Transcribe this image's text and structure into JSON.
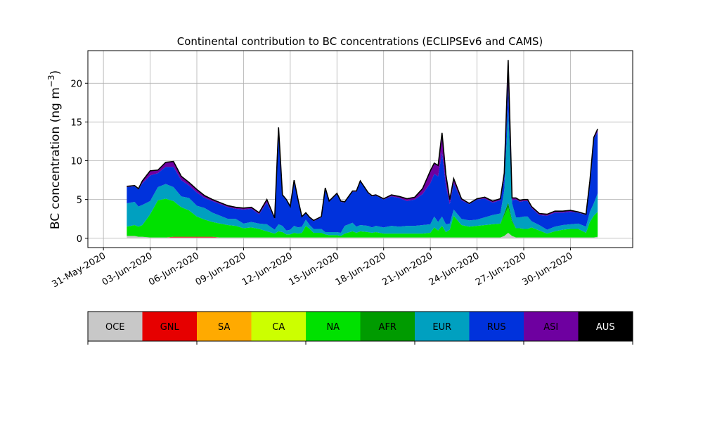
{
  "chart_data": {
    "type": "area",
    "stacked": true,
    "title": "Continental contribution to BC concentrations (ECLIPSEv6 and CAMS)",
    "ylabel": "BC concentration (ng m",
    "ylabel_sup": "−3",
    "ylabel_close": ")",
    "xlabel": "",
    "xlim": [
      "2020-05-30",
      "2020-07-04"
    ],
    "ylim": [
      -1.2,
      24.2
    ],
    "yticks": [
      0,
      5,
      10,
      15,
      20
    ],
    "xticks": [
      "31-May-2020",
      "03-Jun-2020",
      "06-Jun-2020",
      "09-Jun-2020",
      "12-Jun-2020",
      "15-Jun-2020",
      "18-Jun-2020",
      "21-Jun-2020",
      "24-Jun-2020",
      "27-Jun-2020",
      "30-Jun-2020"
    ],
    "xtick_dates": [
      "2020-05-31",
      "2020-06-03",
      "2020-06-06",
      "2020-06-09",
      "2020-06-12",
      "2020-06-15",
      "2020-06-18",
      "2020-06-21",
      "2020-06-24",
      "2020-06-27",
      "2020-06-30"
    ],
    "grid": true,
    "total_line_color": "#000000",
    "times": [
      "2020-06-01 12:00",
      "2020-06-02 00:00",
      "2020-06-02 06:00",
      "2020-06-02 12:00",
      "2020-06-03 00:00",
      "2020-06-03 12:00",
      "2020-06-04 00:00",
      "2020-06-04 12:00",
      "2020-06-05 00:00",
      "2020-06-05 12:00",
      "2020-06-06 00:00",
      "2020-06-06 12:00",
      "2020-06-07 00:00",
      "2020-06-07 12:00",
      "2020-06-08 00:00",
      "2020-06-08 12:00",
      "2020-06-09 00:00",
      "2020-06-09 12:00",
      "2020-06-10 00:00",
      "2020-06-10 12:00",
      "2020-06-11 00:00",
      "2020-06-11 06:00",
      "2020-06-11 12:00",
      "2020-06-11 18:00",
      "2020-06-12 00:00",
      "2020-06-12 06:00",
      "2020-06-12 12:00",
      "2020-06-12 18:00",
      "2020-06-13 00:00",
      "2020-06-13 06:00",
      "2020-06-13 12:00",
      "2020-06-14 00:00",
      "2020-06-14 06:00",
      "2020-06-14 12:00",
      "2020-06-15 00:00",
      "2020-06-15 06:00",
      "2020-06-15 12:00",
      "2020-06-16 00:00",
      "2020-06-16 06:00",
      "2020-06-16 12:00",
      "2020-06-17 00:00",
      "2020-06-17 06:00",
      "2020-06-17 12:00",
      "2020-06-18 00:00",
      "2020-06-18 12:00",
      "2020-06-19 00:00",
      "2020-06-19 12:00",
      "2020-06-20 00:00",
      "2020-06-20 12:00",
      "2020-06-21 00:00",
      "2020-06-21 06:00",
      "2020-06-21 12:00",
      "2020-06-21 18:00",
      "2020-06-22 00:00",
      "2020-06-22 06:00",
      "2020-06-22 12:00",
      "2020-06-23 00:00",
      "2020-06-23 12:00",
      "2020-06-24 00:00",
      "2020-06-24 12:00",
      "2020-06-25 00:00",
      "2020-06-25 12:00",
      "2020-06-25 18:00",
      "2020-06-26 00:00",
      "2020-06-26 06:00",
      "2020-06-26 12:00",
      "2020-06-26 18:00",
      "2020-06-27 00:00",
      "2020-06-27 06:00",
      "2020-06-27 12:00",
      "2020-06-28 00:00",
      "2020-06-28 12:00",
      "2020-06-29 00:00",
      "2020-06-29 12:00",
      "2020-06-30 00:00",
      "2020-06-30 12:00",
      "2020-07-01 00:00",
      "2020-07-01 06:00",
      "2020-07-01 12:00",
      "2020-07-01 18:00"
    ],
    "series": [
      {
        "name": "OCE",
        "color": "#c8c8c8",
        "values": [
          0.3,
          0.3,
          0.2,
          0.2,
          0.1,
          0.1,
          0.1,
          0.1,
          0.1,
          0.1,
          0.1,
          0.1,
          0.1,
          0.1,
          0.1,
          0.1,
          0.1,
          0.1,
          0.1,
          0.1,
          0.1,
          0.1,
          0.1,
          0.1,
          0.1,
          0.1,
          0.1,
          0.1,
          0.1,
          0.1,
          0.1,
          0.1,
          0.1,
          0.1,
          0.1,
          0.1,
          0.1,
          0.1,
          0.1,
          0.1,
          0.1,
          0.1,
          0.1,
          0.1,
          0.1,
          0.1,
          0.1,
          0.1,
          0.1,
          0.1,
          0.1,
          0.1,
          0.1,
          0.1,
          0.1,
          0.1,
          0.1,
          0.1,
          0.1,
          0.1,
          0.1,
          0.1,
          0.3,
          0.7,
          0.3,
          0.1,
          0.1,
          0.1,
          0.1,
          0.1,
          0.1,
          0.1,
          0.1,
          0.1,
          0.1,
          0.1,
          0.1,
          0.1,
          0.1,
          0.2
        ]
      },
      {
        "name": "GNL",
        "color": "#e60000",
        "values": [
          0,
          0,
          0,
          0,
          0,
          0,
          0,
          0.1,
          0.1,
          0.1,
          0.1,
          0.1,
          0.1,
          0,
          0,
          0,
          0,
          0,
          0,
          0,
          0,
          0,
          0,
          0,
          0,
          0,
          0,
          0,
          0,
          0,
          0,
          0,
          0,
          0,
          0,
          0,
          0,
          0,
          0,
          0,
          0,
          0,
          0,
          0,
          0,
          0,
          0,
          0,
          0,
          0,
          0,
          0,
          0,
          0,
          0,
          0,
          0,
          0,
          0,
          0,
          0,
          0,
          0,
          0,
          0,
          0,
          0,
          0,
          0,
          0,
          0,
          0,
          0,
          0,
          0,
          0,
          0,
          0,
          0,
          0
        ]
      },
      {
        "name": "SA",
        "color": "#ffaa00",
        "values": [
          0,
          0,
          0,
          0,
          0,
          0,
          0,
          0,
          0,
          0,
          0,
          0,
          0,
          0,
          0,
          0,
          0,
          0,
          0,
          0,
          0,
          0,
          0,
          0,
          0,
          0,
          0,
          0,
          0,
          0,
          0,
          0,
          0,
          0,
          0,
          0,
          0,
          0,
          0,
          0,
          0,
          0,
          0,
          0,
          0,
          0,
          0,
          0,
          0,
          0,
          0,
          0,
          0,
          0,
          0,
          0,
          0,
          0,
          0,
          0,
          0,
          0,
          0,
          0,
          0,
          0,
          0,
          0,
          0,
          0,
          0,
          0,
          0,
          0,
          0,
          0,
          0,
          0,
          0,
          0
        ]
      },
      {
        "name": "CA",
        "color": "#ccff00",
        "values": [
          0,
          0,
          0,
          0,
          0,
          0,
          0,
          0,
          0,
          0,
          0,
          0,
          0,
          0,
          0,
          0,
          0,
          0,
          0,
          0,
          0,
          0,
          0,
          0,
          0,
          0,
          0,
          0,
          0,
          0,
          0,
          0,
          0,
          0,
          0,
          0,
          0,
          0,
          0,
          0,
          0,
          0,
          0,
          0,
          0,
          0,
          0,
          0,
          0,
          0,
          0,
          0,
          0,
          0,
          0,
          0,
          0,
          0,
          0,
          0,
          0,
          0,
          0,
          0,
          0,
          0,
          0,
          0,
          0,
          0,
          0,
          0,
          0,
          0,
          0,
          0,
          0,
          0,
          0,
          0
        ]
      },
      {
        "name": "NA",
        "color": "#00e100",
        "values": [
          1.2,
          1.4,
          1.3,
          1.5,
          3.0,
          4.8,
          5.0,
          4.6,
          3.8,
          3.4,
          2.6,
          2.2,
          1.9,
          1.8,
          1.6,
          1.5,
          1.2,
          1.3,
          1.1,
          0.8,
          0.5,
          0.8,
          0.7,
          0.4,
          0.4,
          0.6,
          0.5,
          0.6,
          1.5,
          1.1,
          0.6,
          0.6,
          0.4,
          0.3,
          0.3,
          0.2,
          0.5,
          0.8,
          0.6,
          0.8,
          0.7,
          0.6,
          0.7,
          0.5,
          0.5,
          0.5,
          0.5,
          0.5,
          0.5,
          0.6,
          1.3,
          0.9,
          1.5,
          0.7,
          1.0,
          2.8,
          1.6,
          1.4,
          1.5,
          1.6,
          1.7,
          1.8,
          2.6,
          3.3,
          1.8,
          1.2,
          1.2,
          1.1,
          1.1,
          1.3,
          0.9,
          0.5,
          0.8,
          1.0,
          1.1,
          1.1,
          0.6,
          2.0,
          2.8,
          3.2
        ]
      },
      {
        "name": "AFR",
        "color": "#009b00",
        "values": [
          0,
          0,
          0,
          0,
          0,
          0,
          0,
          0,
          0,
          0,
          0,
          0,
          0,
          0,
          0,
          0,
          0,
          0,
          0,
          0,
          0,
          0,
          0,
          0,
          0,
          0,
          0,
          0,
          0,
          0,
          0,
          0,
          0,
          0,
          0,
          0,
          0,
          0,
          0,
          0,
          0,
          0,
          0,
          0,
          0,
          0,
          0,
          0,
          0,
          0,
          0,
          0,
          0,
          0,
          0,
          0,
          0,
          0,
          0,
          0,
          0,
          0,
          0.3,
          0.6,
          0.2,
          0,
          0,
          0,
          0,
          0,
          0,
          0,
          0,
          0,
          0,
          0,
          0,
          0,
          0,
          0
        ]
      },
      {
        "name": "EUR",
        "color": "#00a0c0",
        "values": [
          3.0,
          3.0,
          2.6,
          2.6,
          1.7,
          1.7,
          1.9,
          1.8,
          1.4,
          1.6,
          1.4,
          1.5,
          1.2,
          1.0,
          0.8,
          0.9,
          0.6,
          0.7,
          0.7,
          0.9,
          0.5,
          0.9,
          0.8,
          0.5,
          0.6,
          0.9,
          0.8,
          0.8,
          0.8,
          0.5,
          0.5,
          0.5,
          0.3,
          0.4,
          0.4,
          0.4,
          1.0,
          1.1,
          0.8,
          0.8,
          0.8,
          0.7,
          0.8,
          0.8,
          1.0,
          0.9,
          1.0,
          1.0,
          1.1,
          1.1,
          1.4,
          1.1,
          1.2,
          1.0,
          0.8,
          0.8,
          0.8,
          0.8,
          0.8,
          1.0,
          1.2,
          1.3,
          3.0,
          12.0,
          2.2,
          1.4,
          1.4,
          1.6,
          1.6,
          0.8,
          0.7,
          0.5,
          0.6,
          0.6,
          0.6,
          0.7,
          0.8,
          1.3,
          1.6,
          2.4
        ]
      },
      {
        "name": "RUS",
        "color": "#0032dc",
        "values": [
          2.1,
          2.0,
          2.2,
          2.8,
          3.3,
          1.8,
          2.2,
          2.6,
          2.1,
          1.6,
          1.7,
          1.3,
          1.5,
          1.5,
          1.5,
          1.3,
          1.8,
          1.7,
          1.2,
          2.8,
          1.4,
          12.4,
          3.9,
          3.9,
          2.9,
          5.8,
          3.5,
          1.2,
          0.8,
          0.9,
          1.0,
          1.5,
          5.6,
          3.9,
          4.9,
          4.0,
          3.0,
          4.0,
          4.5,
          5.6,
          4.2,
          4.0,
          3.9,
          3.6,
          3.8,
          3.7,
          3.2,
          3.4,
          4.0,
          5.3,
          5.5,
          5.9,
          8.3,
          5.0,
          2.5,
          3.4,
          2.4,
          2.1,
          2.6,
          2.4,
          1.6,
          1.7,
          1.4,
          3.3,
          0.4,
          2.3,
          2.0,
          2.0,
          2.0,
          1.7,
          1.3,
          1.8,
          1.8,
          1.6,
          1.6,
          1.4,
          1.5,
          3.9,
          8.3,
          7.9
        ]
      },
      {
        "name": "ASI",
        "color": "#6e00a0",
        "values": [
          0.1,
          0.1,
          0.1,
          0.3,
          0.6,
          0.4,
          0.6,
          0.7,
          0.5,
          0.4,
          0.4,
          0.3,
          0.2,
          0.2,
          0.2,
          0.2,
          0.2,
          0.2,
          0.2,
          0.4,
          0.1,
          0.1,
          0.1,
          0.1,
          0.1,
          0.1,
          0.1,
          0.1,
          0.1,
          0.1,
          0.1,
          0.1,
          0.1,
          0.1,
          0.1,
          0.1,
          0.1,
          0.1,
          0.1,
          0.1,
          0.1,
          0.1,
          0.1,
          0.1,
          0.2,
          0.2,
          0.3,
          0.3,
          0.7,
          1.6,
          1.4,
          1.4,
          2.5,
          1.4,
          0.6,
          0.6,
          0.2,
          0.1,
          0.1,
          0.2,
          0.2,
          0.2,
          0.8,
          3.1,
          0.3,
          0.2,
          0.2,
          0.2,
          0.2,
          0.2,
          0.2,
          0.2,
          0.2,
          0.2,
          0.2,
          0.1,
          0.1,
          0.1,
          0.2,
          0.4
        ]
      },
      {
        "name": "AUS",
        "color": "#000000",
        "values": [
          0,
          0,
          0,
          0,
          0,
          0,
          0,
          0,
          0,
          0,
          0,
          0,
          0,
          0,
          0,
          0,
          0,
          0,
          0,
          0,
          0,
          0,
          0,
          0,
          0,
          0,
          0,
          0,
          0,
          0,
          0,
          0,
          0,
          0,
          0,
          0,
          0,
          0,
          0,
          0,
          0,
          0,
          0,
          0,
          0,
          0,
          0,
          0,
          0,
          0,
          0,
          0,
          0,
          0,
          0,
          0,
          0,
          0,
          0,
          0,
          0,
          0,
          0,
          0,
          0,
          0,
          0,
          0,
          0,
          0,
          0,
          0,
          0,
          0,
          0,
          0,
          0,
          0,
          0,
          0
        ]
      }
    ]
  },
  "legend": {
    "items": [
      {
        "label": "OCE",
        "color": "#c8c8c8",
        "text_color": "#000000"
      },
      {
        "label": "GNL",
        "color": "#e60000",
        "text_color": "#000000"
      },
      {
        "label": "SA",
        "color": "#ffaa00",
        "text_color": "#000000"
      },
      {
        "label": "CA",
        "color": "#ccff00",
        "text_color": "#000000"
      },
      {
        "label": "NA",
        "color": "#00e100",
        "text_color": "#000000"
      },
      {
        "label": "AFR",
        "color": "#009b00",
        "text_color": "#000000"
      },
      {
        "label": "EUR",
        "color": "#00a0c0",
        "text_color": "#000000"
      },
      {
        "label": "RUS",
        "color": "#0032dc",
        "text_color": "#000000"
      },
      {
        "label": "ASI",
        "color": "#6e00a0",
        "text_color": "#000000"
      },
      {
        "label": "AUS",
        "color": "#000000",
        "text_color": "#ffffff"
      }
    ]
  }
}
